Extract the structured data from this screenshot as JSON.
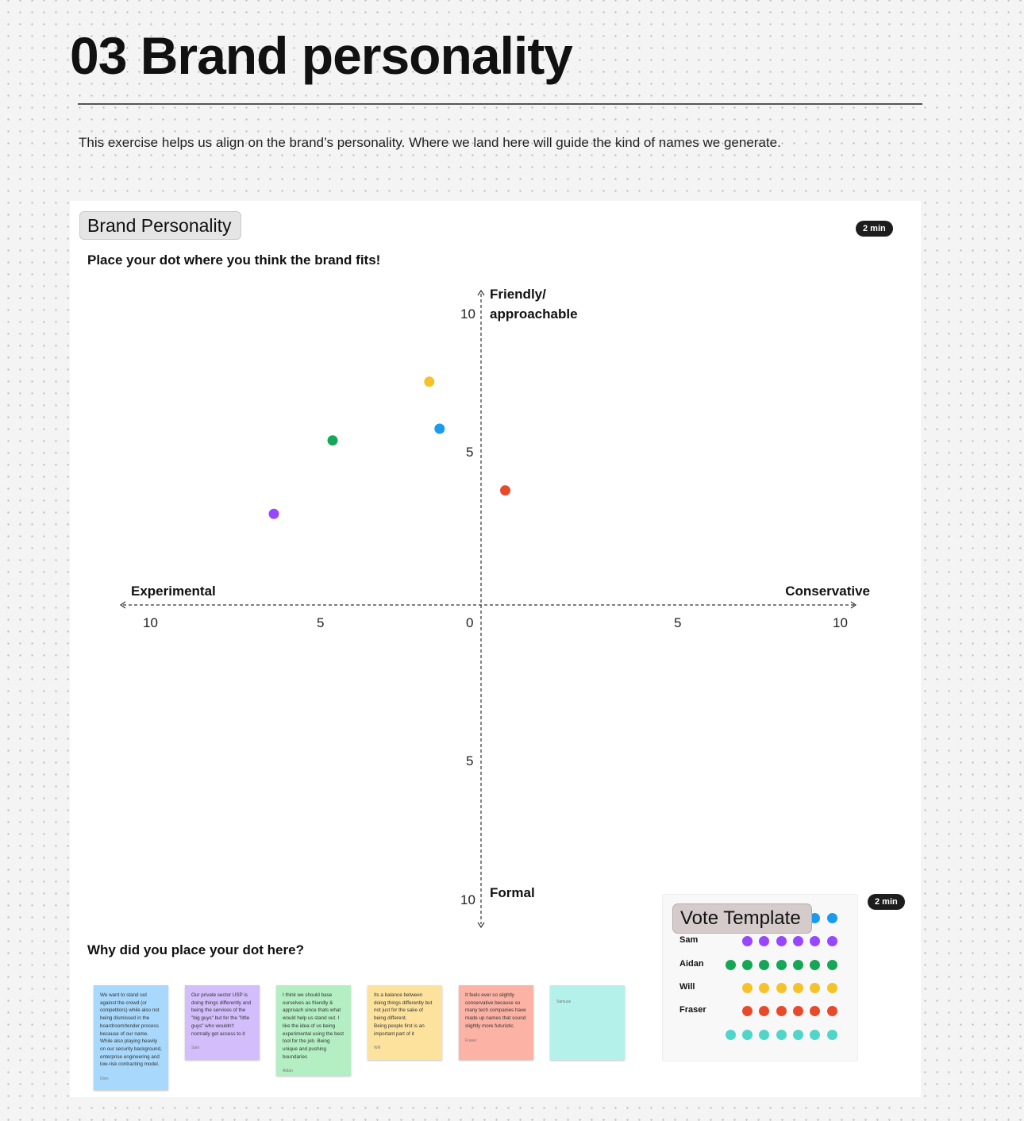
{
  "page": {
    "title": "03 Brand personality",
    "intro": "This exercise helps us align on the brand’s personality. Where we land here will guide the kind of names we generate."
  },
  "section": {
    "chip_label": "Brand Personality",
    "timer": "2 min",
    "prompt": "Place your dot where you think the brand fits!"
  },
  "chart_data": {
    "type": "scatter",
    "title": "",
    "axes": {
      "x": {
        "left_label": "Experimental",
        "right_label": "Conservative",
        "ticks": [
          "10",
          "5",
          "0",
          "5",
          "10"
        ],
        "range": [
          -10,
          10
        ]
      },
      "y": {
        "top_label": [
          "Friendly/",
          "approachable"
        ],
        "bottom_label": "Formal",
        "ticks": [
          "10",
          "5",
          "5",
          "10"
        ],
        "range": [
          -10,
          10
        ]
      }
    },
    "points": [
      {
        "x": -1.5,
        "y": 7.6,
        "color": "#f5c22a"
      },
      {
        "x": -4.3,
        "y": 5.6,
        "color": "#15a757"
      },
      {
        "x": -1.2,
        "y": 6.0,
        "color": "#1a9bf0"
      },
      {
        "x": 0.7,
        "y": 3.9,
        "color": "#e8492a"
      },
      {
        "x": -6.0,
        "y": 3.1,
        "color": "#9747ff"
      }
    ],
    "grid": false
  },
  "why": {
    "prompt": "Why did you place your dot here?",
    "stickies": [
      {
        "text": "We want to stand out against the crowd (or competitors) while also not being dismissed in the boardroom/tender process because of our name. While also playing heavily on our security background, enterprise engineering and low-risk contracting model.",
        "author": "Dom",
        "color": "#a8d8fb"
      },
      {
        "text": "Our private sector USP is doing things differently and being the services of the \"big guys\" but for the \"little guys\" who wouldn't normally get access to it",
        "author": "Sam",
        "color": "#d3bdfb"
      },
      {
        "text": "I think we should base ourselves as friendly & approach since thats what would help us stand out. I like the idea of us being experimental using the best tool for the job. Being unique and pushing boundaries",
        "author": "Aidan",
        "color": "#b4eec3"
      },
      {
        "text": "Its a balance between doing things differently but not just for the sake of being different.\nBeing people first is an important part of it",
        "author": "Will",
        "color": "#fde29e"
      },
      {
        "text": "It feels ever so slightly conservative because so many tech companies have made up names that sound slightly more futuristic.",
        "author": "Fraser",
        "color": "#fcb3a5"
      },
      {
        "text": "",
        "author": "Samuse",
        "color": "#b4f1ea"
      }
    ]
  },
  "vote": {
    "chip_label": "Vote Template",
    "timer": "2 min",
    "rows": [
      {
        "name": "",
        "color": "#1a9bf0",
        "count": 2
      },
      {
        "name": "Sam",
        "color": "#9747ff",
        "count": 6
      },
      {
        "name": "Aidan",
        "color": "#15a757",
        "count": 7
      },
      {
        "name": "Will",
        "color": "#f5c22a",
        "count": 6
      },
      {
        "name": "Fraser",
        "color": "#e8492a",
        "count": 6
      },
      {
        "name": "",
        "color": "#4fd6c8",
        "count": 7
      }
    ]
  }
}
